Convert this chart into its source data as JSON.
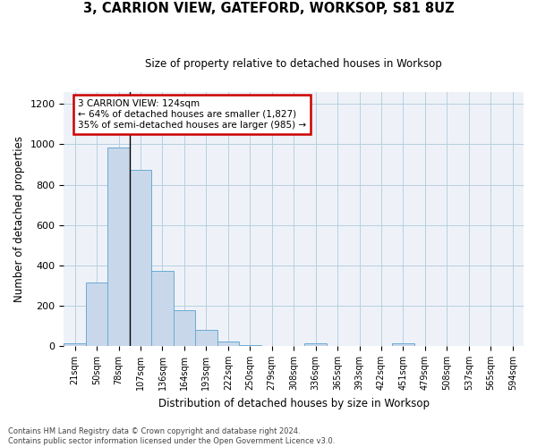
{
  "title": "3, CARRION VIEW, GATEFORD, WORKSOP, S81 8UZ",
  "subtitle": "Size of property relative to detached houses in Worksop",
  "xlabel": "Distribution of detached houses by size in Worksop",
  "ylabel": "Number of detached properties",
  "bin_labels": [
    "21sqm",
    "50sqm",
    "78sqm",
    "107sqm",
    "136sqm",
    "164sqm",
    "193sqm",
    "222sqm",
    "250sqm",
    "279sqm",
    "308sqm",
    "336sqm",
    "365sqm",
    "393sqm",
    "422sqm",
    "451sqm",
    "479sqm",
    "508sqm",
    "537sqm",
    "565sqm",
    "594sqm"
  ],
  "bar_values": [
    12,
    315,
    985,
    875,
    370,
    178,
    80,
    22,
    5,
    0,
    0,
    12,
    0,
    0,
    0,
    12,
    0,
    0,
    0,
    0,
    0
  ],
  "bar_color": "#c8d8ea",
  "bar_edge_color": "#6aaad4",
  "annotation_text": "3 CARRION VIEW: 124sqm\n← 64% of detached houses are smaller (1,827)\n35% of semi-detached houses are larger (985) →",
  "vline_color": "#000000",
  "annotation_box_color": "#ffffff",
  "annotation_box_edge": "#cc0000",
  "footer_text": "Contains HM Land Registry data © Crown copyright and database right 2024.\nContains public sector information licensed under the Open Government Licence v3.0.",
  "ylim": [
    0,
    1260
  ],
  "yticks": [
    0,
    200,
    400,
    600,
    800,
    1000,
    1200
  ],
  "grid_color": "#b8cfe0",
  "bg_color": "#eef2f8"
}
